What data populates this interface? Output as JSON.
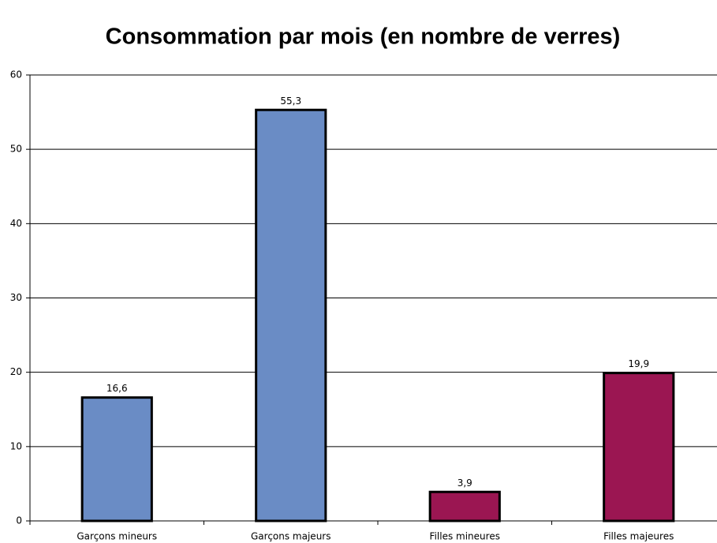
{
  "chart_data": {
    "type": "bar",
    "title": "Consommation par mois (en nombre de verres)",
    "categories": [
      "Garçons mineurs",
      "Garçons majeurs",
      "Filles mineures",
      "Filles majeures"
    ],
    "values": [
      16.6,
      55.3,
      3.9,
      19.9
    ],
    "value_labels": [
      "16,6",
      "55,3",
      "3,9",
      "19,9"
    ],
    "colors": [
      "#6a8cc5",
      "#6a8cc5",
      "#9b1652",
      "#9b1652"
    ],
    "ylim": [
      0,
      60
    ],
    "yticks": [
      0,
      10,
      20,
      30,
      40,
      50,
      60
    ],
    "grid": true
  }
}
